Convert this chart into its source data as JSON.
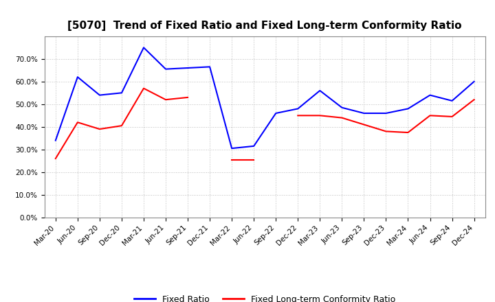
{
  "title": "[5070]  Trend of Fixed Ratio and Fixed Long-term Conformity Ratio",
  "x_labels": [
    "Mar-20",
    "Jun-20",
    "Sep-20",
    "Dec-20",
    "Mar-21",
    "Jun-21",
    "Sep-21",
    "Dec-21",
    "Mar-22",
    "Jun-22",
    "Sep-22",
    "Dec-22",
    "Mar-23",
    "Jun-23",
    "Sep-23",
    "Dec-23",
    "Mar-24",
    "Jun-24",
    "Sep-24",
    "Dec-24"
  ],
  "fixed_ratio": [
    34.0,
    62.0,
    54.0,
    55.0,
    75.0,
    65.5,
    66.0,
    66.5,
    30.5,
    31.5,
    46.0,
    48.0,
    56.0,
    48.5,
    46.0,
    46.0,
    48.0,
    54.0,
    51.5,
    60.0
  ],
  "fixed_lt_ratio": [
    26.0,
    42.0,
    39.0,
    40.5,
    57.0,
    52.0,
    53.0,
    null,
    25.5,
    25.5,
    null,
    45.0,
    45.0,
    44.0,
    41.0,
    38.0,
    37.5,
    45.0,
    44.5,
    52.0
  ],
  "fixed_ratio_color": "#0000FF",
  "fixed_lt_ratio_color": "#FF0000",
  "ylim": [
    0,
    80
  ],
  "yticks": [
    0,
    10,
    20,
    30,
    40,
    50,
    60,
    70
  ],
  "background_color": "#FFFFFF",
  "grid_color": "#BBBBBB",
  "title_fontsize": 11,
  "tick_fontsize": 7.5,
  "legend_fontsize": 9
}
